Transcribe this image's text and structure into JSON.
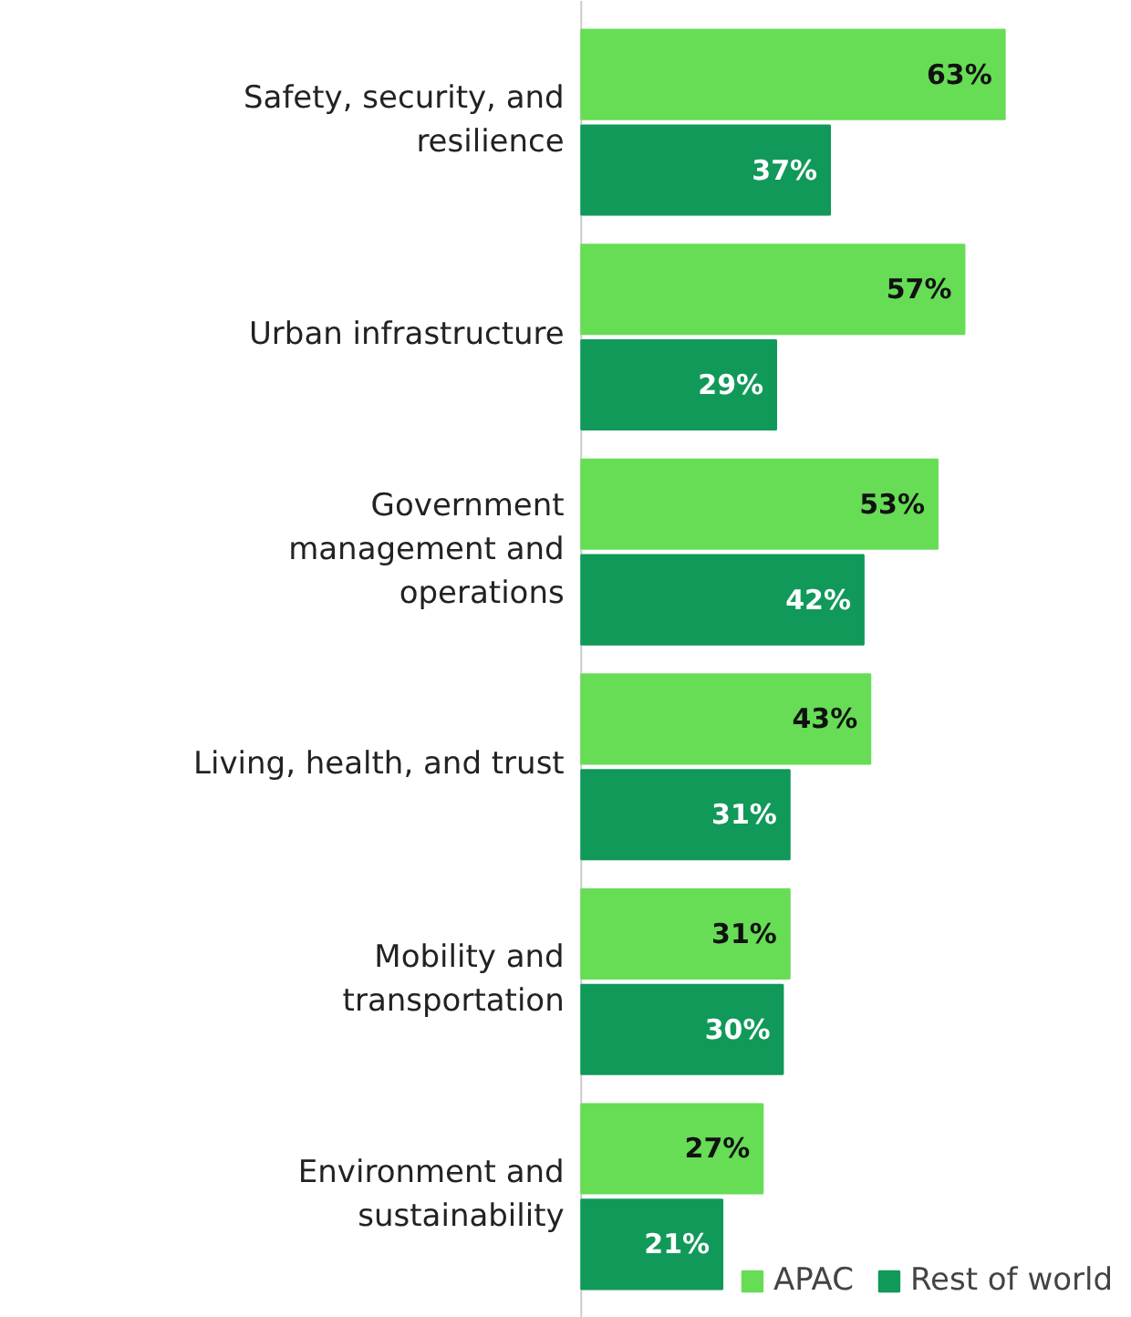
{
  "chart_data": {
    "type": "bar",
    "orientation": "horizontal",
    "legend": "bottom right",
    "categories": [
      "Safety, security, and\nresilience",
      "Urban infrastructure",
      "Government\nmanagement and\noperations",
      "Living, health, and trust",
      "Mobility and\ntransportation",
      "Environment and\nsustainability"
    ],
    "series": [
      {
        "name": "APAC",
        "color": "#66dd55",
        "values": [
          63,
          57,
          53,
          43,
          31,
          27
        ],
        "value_labels": [
          "63%",
          "57%",
          "53%",
          "43%",
          "31%",
          "27%"
        ]
      },
      {
        "name": "Rest of world",
        "color": "#11995a",
        "values": [
          37,
          29,
          42,
          31,
          30,
          21
        ],
        "value_labels": [
          "37%",
          "29%",
          "42%",
          "31%",
          "30%",
          "21%"
        ]
      }
    ]
  }
}
